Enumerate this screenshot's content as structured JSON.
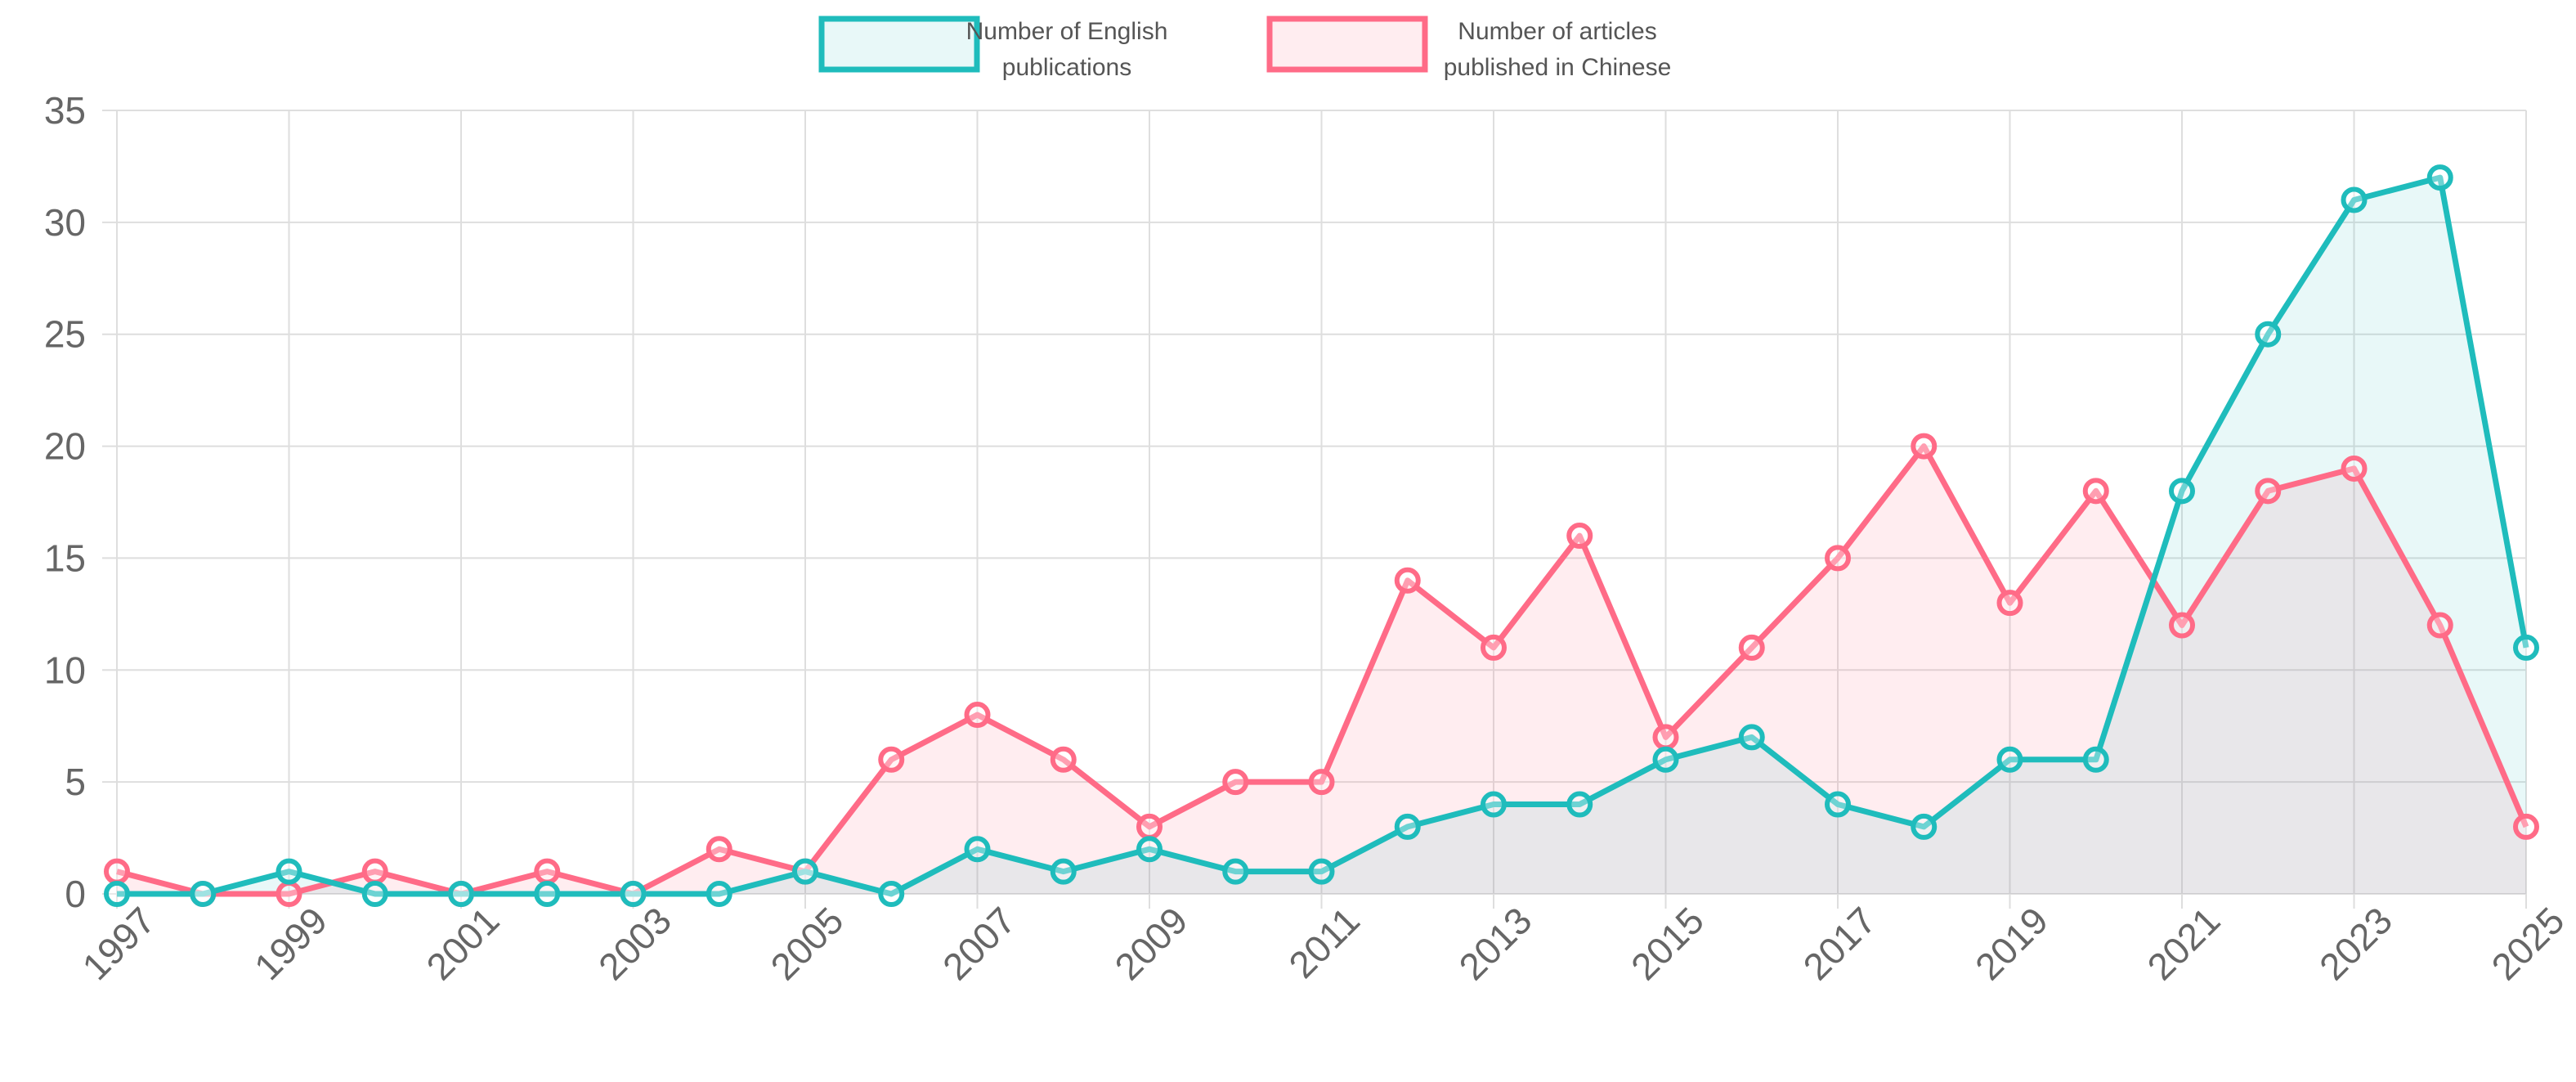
{
  "chart_data": {
    "type": "line",
    "title": "",
    "xlabel": "",
    "ylabel": "",
    "x": [
      1997,
      1998,
      1999,
      2000,
      2001,
      2002,
      2003,
      2004,
      2005,
      2006,
      2007,
      2008,
      2009,
      2010,
      2011,
      2012,
      2013,
      2014,
      2015,
      2016,
      2017,
      2018,
      2019,
      2020,
      2021,
      2022,
      2023,
      2024,
      2025
    ],
    "x_tick_labels": [
      "1997",
      "1999",
      "2001",
      "2003",
      "2005",
      "2007",
      "2009",
      "2011",
      "2013",
      "2015",
      "2017",
      "2019",
      "2021",
      "2023",
      "2025"
    ],
    "y_tick_labels": [
      "0",
      "5",
      "10",
      "15",
      "20",
      "25",
      "30",
      "35"
    ],
    "ylim": [
      0,
      35
    ],
    "grid": true,
    "legend_position": "top-center",
    "series": [
      {
        "name": "Number of English publications",
        "legend_lines": [
          "Number of English",
          "publications"
        ],
        "color": "#1fbcbc",
        "fill": "rgba(31,188,188,0.10)",
        "values": [
          0,
          0,
          1,
          0,
          0,
          0,
          0,
          0,
          1,
          0,
          2,
          1,
          2,
          1,
          1,
          3,
          4,
          4,
          6,
          7,
          4,
          3,
          6,
          6,
          18,
          25,
          31,
          32,
          11
        ]
      },
      {
        "name": "Number of articles published in Chinese",
        "legend_lines": [
          "Number of articles",
          "published in Chinese"
        ],
        "color": "#ff6b87",
        "fill": "rgba(255,107,135,0.12)",
        "values": [
          1,
          0,
          0,
          1,
          0,
          1,
          0,
          2,
          1,
          6,
          8,
          6,
          3,
          5,
          5,
          14,
          11,
          16,
          7,
          11,
          15,
          20,
          13,
          18,
          12,
          18,
          19,
          12,
          3
        ]
      }
    ]
  }
}
